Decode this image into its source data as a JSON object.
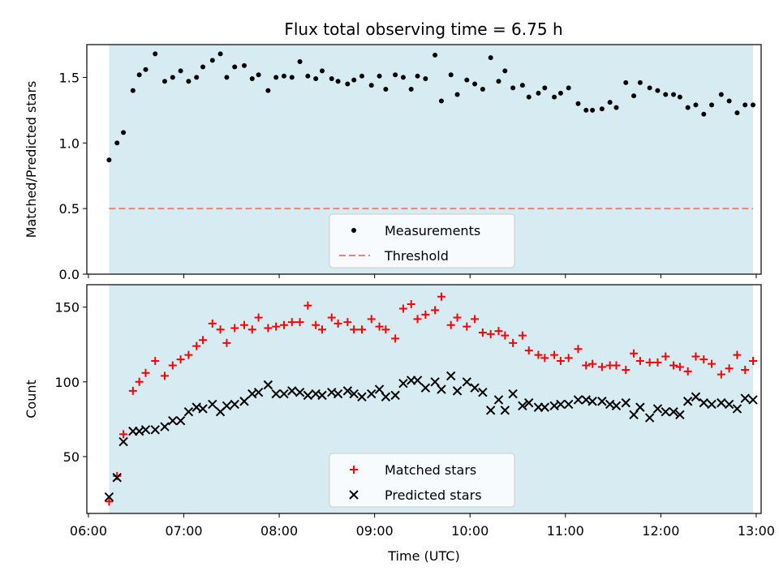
{
  "title": "Flux total observing time = 6.75 h",
  "colors": {
    "shade": "#add8e6",
    "measurements": "#000000",
    "threshold": "#f08080",
    "matched": "#ff0000",
    "predicted": "#000000"
  },
  "chart_data": [
    {
      "type": "scatter",
      "ylabel": "Matched/Predicted stars",
      "xlabel": "",
      "xlim": [
        "06:00",
        "13:00"
      ],
      "ylim": [
        0,
        1.75
      ],
      "yticks": [
        "0.0",
        "0.5",
        "1.0",
        "1.5"
      ],
      "shaded_span": [
        "06:13",
        "12:58"
      ],
      "threshold": 0.5,
      "legend": {
        "position": "lower-center",
        "entries": [
          "Measurements",
          "Threshold"
        ]
      },
      "series": [
        {
          "name": "Measurements",
          "x": [
            "06:13",
            "06:18",
            "06:22",
            "06:28",
            "06:32",
            "06:36",
            "06:42",
            "06:48",
            "06:53",
            "06:58",
            "07:03",
            "07:08",
            "07:12",
            "07:18",
            "07:23",
            "07:27",
            "07:32",
            "07:38",
            "07:43",
            "07:47",
            "07:53",
            "07:58",
            "08:03",
            "08:08",
            "08:13",
            "08:18",
            "08:23",
            "08:27",
            "08:33",
            "08:37",
            "08:43",
            "08:47",
            "08:52",
            "08:58",
            "09:03",
            "09:07",
            "09:13",
            "09:18",
            "09:23",
            "09:27",
            "09:32",
            "09:38",
            "09:42",
            "09:48",
            "09:52",
            "09:58",
            "10:03",
            "10:08",
            "10:13",
            "10:18",
            "10:22",
            "10:27",
            "10:33",
            "10:37",
            "10:43",
            "10:47",
            "10:53",
            "10:57",
            "11:02",
            "11:08",
            "11:13",
            "11:17",
            "11:23",
            "11:28",
            "11:32",
            "11:38",
            "11:43",
            "11:47",
            "11:53",
            "11:58",
            "12:03",
            "12:08",
            "12:12",
            "12:17",
            "12:22",
            "12:27",
            "12:32",
            "12:38",
            "12:43",
            "12:48",
            "12:53",
            "12:58"
          ],
          "y": [
            0.87,
            1.0,
            1.08,
            1.4,
            1.52,
            1.56,
            1.68,
            1.47,
            1.5,
            1.55,
            1.47,
            1.5,
            1.58,
            1.63,
            1.68,
            1.5,
            1.58,
            1.59,
            1.49,
            1.52,
            1.4,
            1.5,
            1.51,
            1.5,
            1.62,
            1.51,
            1.49,
            1.55,
            1.49,
            1.47,
            1.45,
            1.48,
            1.51,
            1.44,
            1.51,
            1.41,
            1.52,
            1.5,
            1.41,
            1.51,
            1.49,
            1.67,
            1.32,
            1.52,
            1.37,
            1.48,
            1.45,
            1.41,
            1.65,
            1.47,
            1.55,
            1.42,
            1.44,
            1.35,
            1.38,
            1.42,
            1.35,
            1.38,
            1.42,
            1.3,
            1.25,
            1.25,
            1.26,
            1.31,
            1.27,
            1.46,
            1.36,
            1.46,
            1.42,
            1.4,
            1.37,
            1.37,
            1.35,
            1.27,
            1.29,
            1.22,
            1.29,
            1.37,
            1.32,
            1.23,
            1.29,
            1.29
          ]
        },
        {
          "name": "Threshold",
          "y": 0.5
        }
      ]
    },
    {
      "type": "scatter",
      "ylabel": "Count",
      "xlabel": "Time (UTC)",
      "xlim": [
        "06:00",
        "13:00"
      ],
      "ylim": [
        12,
        165
      ],
      "yticks": [
        "50",
        "100",
        "150"
      ],
      "xticks": [
        "06:00",
        "07:00",
        "08:00",
        "09:00",
        "10:00",
        "11:00",
        "12:00",
        "13:00"
      ],
      "shaded_span": [
        "06:13",
        "12:58"
      ],
      "legend": {
        "position": "lower-center",
        "entries": [
          "Matched stars",
          "Predicted stars"
        ]
      },
      "series": [
        {
          "name": "Matched stars",
          "x": [
            "06:13",
            "06:18",
            "06:22",
            "06:28",
            "06:32",
            "06:36",
            "06:42",
            "06:48",
            "06:53",
            "06:58",
            "07:03",
            "07:08",
            "07:12",
            "07:18",
            "07:23",
            "07:27",
            "07:32",
            "07:38",
            "07:43",
            "07:47",
            "07:53",
            "07:58",
            "08:03",
            "08:08",
            "08:13",
            "08:18",
            "08:23",
            "08:27",
            "08:33",
            "08:37",
            "08:43",
            "08:47",
            "08:52",
            "08:58",
            "09:03",
            "09:07",
            "09:13",
            "09:18",
            "09:23",
            "09:27",
            "09:32",
            "09:38",
            "09:42",
            "09:48",
            "09:52",
            "09:58",
            "10:03",
            "10:08",
            "10:13",
            "10:18",
            "10:22",
            "10:27",
            "10:33",
            "10:37",
            "10:43",
            "10:47",
            "10:53",
            "10:57",
            "11:02",
            "11:08",
            "11:13",
            "11:17",
            "11:23",
            "11:28",
            "11:32",
            "11:38",
            "11:43",
            "11:47",
            "11:53",
            "11:58",
            "12:03",
            "12:08",
            "12:12",
            "12:17",
            "12:22",
            "12:27",
            "12:32",
            "12:38",
            "12:43",
            "12:48",
            "12:53",
            "12:58"
          ],
          "y": [
            20,
            37,
            65,
            94,
            100,
            106,
            114,
            104,
            111,
            115,
            118,
            124,
            128,
            139,
            135,
            126,
            136,
            138,
            135,
            143,
            136,
            137,
            138,
            140,
            140,
            151,
            138,
            135,
            143,
            139,
            140,
            135,
            135,
            142,
            137,
            135,
            129,
            149,
            152,
            142,
            145,
            148,
            157,
            138,
            143,
            137,
            142,
            133,
            132,
            134,
            131,
            126,
            131,
            121,
            118,
            116,
            118,
            114,
            116,
            122,
            111,
            112,
            110,
            111,
            111,
            108,
            119,
            114,
            113,
            113,
            117,
            111,
            110,
            107,
            117,
            115,
            112,
            105,
            109,
            118,
            108,
            114
          ]
        },
        {
          "name": "Predicted stars",
          "x": [
            "06:13",
            "06:18",
            "06:22",
            "06:28",
            "06:32",
            "06:36",
            "06:42",
            "06:48",
            "06:53",
            "06:58",
            "07:03",
            "07:08",
            "07:12",
            "07:18",
            "07:23",
            "07:27",
            "07:32",
            "07:38",
            "07:43",
            "07:47",
            "07:53",
            "07:58",
            "08:03",
            "08:08",
            "08:13",
            "08:18",
            "08:23",
            "08:27",
            "08:33",
            "08:37",
            "08:43",
            "08:47",
            "08:52",
            "08:58",
            "09:03",
            "09:07",
            "09:13",
            "09:18",
            "09:23",
            "09:27",
            "09:32",
            "09:38",
            "09:42",
            "09:48",
            "09:52",
            "09:58",
            "10:03",
            "10:08",
            "10:13",
            "10:18",
            "10:22",
            "10:27",
            "10:33",
            "10:37",
            "10:43",
            "10:47",
            "10:53",
            "10:57",
            "11:02",
            "11:08",
            "11:13",
            "11:17",
            "11:23",
            "11:28",
            "11:32",
            "11:38",
            "11:43",
            "11:47",
            "11:53",
            "11:58",
            "12:03",
            "12:08",
            "12:12",
            "12:17",
            "12:22",
            "12:27",
            "12:32",
            "12:38",
            "12:43",
            "12:48",
            "12:53",
            "12:58"
          ],
          "y": [
            23,
            36,
            60,
            67,
            67,
            68,
            68,
            70,
            74,
            74,
            80,
            83,
            82,
            85,
            80,
            84,
            85,
            87,
            92,
            93,
            98,
            92,
            92,
            94,
            93,
            91,
            92,
            91,
            93,
            92,
            94,
            92,
            90,
            92,
            95,
            90,
            91,
            99,
            101,
            101,
            96,
            100,
            95,
            104,
            94,
            100,
            96,
            93,
            81,
            88,
            81,
            92,
            84,
            86,
            83,
            83,
            84,
            85,
            85,
            88,
            88,
            87,
            87,
            85,
            84,
            86,
            78,
            83,
            76,
            82,
            80,
            80,
            78,
            87,
            90,
            86,
            85,
            86,
            85,
            82,
            89,
            88
          ]
        }
      ]
    }
  ]
}
